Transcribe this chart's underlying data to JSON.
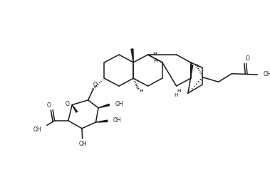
{
  "background": "#ffffff",
  "line_color": "#1a1a1a",
  "line_width": 1.1,
  "figsize": [
    3.79,
    2.66
  ],
  "dpi": 100,
  "xlim": [
    0,
    10
  ],
  "ylim": [
    0,
    7
  ]
}
